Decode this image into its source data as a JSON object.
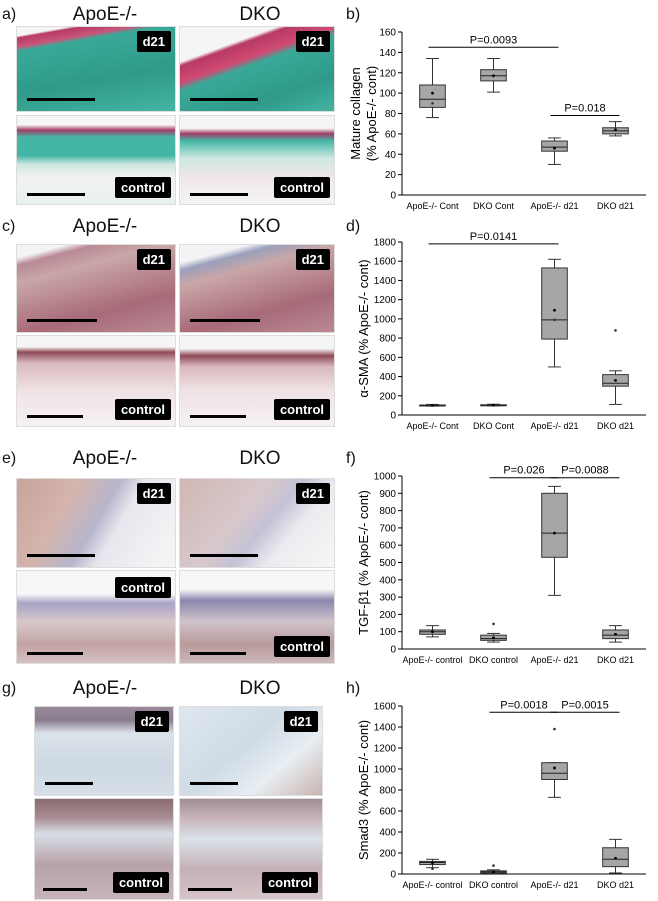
{
  "panels": {
    "a": {
      "label": "a)",
      "col_left": "ApoE-/-",
      "col_right": "DKO",
      "top_left_badge": "d21",
      "top_right_badge": "d21",
      "bottom_left_badge": "control",
      "bottom_right_badge": "control"
    },
    "b": {
      "label": "b)"
    },
    "c": {
      "label": "c)",
      "col_left": "ApoE-/-",
      "col_right": "DKO",
      "top_left_badge": "d21",
      "top_right_badge": "d21",
      "bottom_left_badge": "control",
      "bottom_right_badge": "control"
    },
    "d": {
      "label": "d)"
    },
    "e": {
      "label": "e)",
      "col_left": "ApoE-/-",
      "col_right": "DKO",
      "top_left_badge": "d21",
      "top_right_badge": "d21",
      "bottom_left_badge": "control",
      "bottom_right_badge": "control"
    },
    "f": {
      "label": "f)"
    },
    "g": {
      "label": "g)",
      "col_left": "ApoE-/-",
      "col_right": "DKO",
      "top_left_badge": "d21",
      "top_right_badge": "d21",
      "bottom_left_badge": "control",
      "bottom_right_badge": "control"
    },
    "h": {
      "label": "h)"
    }
  },
  "image_colors": {
    "a_top": [
      "#3aa898",
      "#b73a66"
    ],
    "a_bottom": [
      "#43b6a6",
      "#a23d66"
    ],
    "c": [
      "#c9a6a8",
      "#8e4a57"
    ],
    "e": [
      "#d8c8cc",
      "#a26a6e"
    ],
    "g": [
      "#dbe3ea",
      "#8a6c72"
    ]
  },
  "chart_data": [
    {
      "type": "box",
      "panel": "b",
      "ylabel": "Mature collagen\n(% ApoE-/- cont)",
      "ylim": [
        0,
        160
      ],
      "yticks": [
        0,
        20,
        40,
        60,
        80,
        100,
        120,
        140,
        160
      ],
      "categories": [
        "ApoE-/- Cont",
        "DKO Cont",
        "ApoE-/- d21",
        "DKO d21"
      ],
      "boxes": [
        {
          "min": 76,
          "q1": 86,
          "median": 94,
          "q3": 108,
          "max": 134,
          "mean": 100,
          "points": [
            90
          ]
        },
        {
          "min": 101,
          "q1": 112,
          "median": 117,
          "q3": 123,
          "max": 134,
          "mean": 117,
          "points": []
        },
        {
          "min": 30,
          "q1": 43,
          "median": 47,
          "q3": 53,
          "max": 56,
          "mean": 46,
          "points": []
        },
        {
          "min": 58,
          "q1": 60,
          "median": 63,
          "q3": 66,
          "max": 72,
          "mean": 64,
          "points": []
        }
      ],
      "annotations": [
        {
          "text": "P=0.0093",
          "from": 0,
          "to": 2,
          "y": 145
        },
        {
          "text": "P=0.018",
          "from": 2,
          "to": 3,
          "y": 78
        }
      ]
    },
    {
      "type": "box",
      "panel": "d",
      "ylabel": "α-SMA (% ApoE-/- cont)",
      "ylim": [
        0,
        1800
      ],
      "yticks": [
        0,
        200,
        400,
        600,
        800,
        1000,
        1200,
        1400,
        1600,
        1800
      ],
      "categories": [
        "ApoE-/- Cont",
        "DKO Cont",
        "ApoE-/- d21",
        "DKO d21"
      ],
      "boxes": [
        {
          "min": 92,
          "q1": 97,
          "median": 100,
          "q3": 104,
          "max": 110,
          "mean": 100,
          "points": []
        },
        {
          "min": 95,
          "q1": 99,
          "median": 103,
          "q3": 106,
          "max": 112,
          "mean": 103,
          "points": []
        },
        {
          "min": 500,
          "q1": 790,
          "median": 990,
          "q3": 1530,
          "max": 1620,
          "mean": 1090,
          "points": [
            990
          ]
        },
        {
          "min": 110,
          "q1": 300,
          "median": 330,
          "q3": 420,
          "max": 460,
          "mean": 360,
          "points": [
            880
          ]
        }
      ],
      "annotations": [
        {
          "text": "P=0.0141",
          "from": 0,
          "to": 2,
          "y": 1780
        }
      ]
    },
    {
      "type": "box",
      "panel": "f",
      "ylabel": "TGF-β1 (% ApoE-/- cont)",
      "ylim": [
        0,
        1000
      ],
      "yticks": [
        0,
        100,
        200,
        300,
        400,
        500,
        600,
        700,
        800,
        900,
        1000
      ],
      "categories": [
        "ApoE-/- control",
        "DKO control",
        "ApoE-/- d21",
        "DKO d21"
      ],
      "boxes": [
        {
          "min": 70,
          "q1": 85,
          "median": 100,
          "q3": 110,
          "max": 135,
          "mean": 100,
          "points": []
        },
        {
          "min": 40,
          "q1": 50,
          "median": 60,
          "q3": 80,
          "max": 90,
          "mean": 65,
          "points": [
            145
          ]
        },
        {
          "min": 310,
          "q1": 530,
          "median": 670,
          "q3": 900,
          "max": 940,
          "mean": 670,
          "points": []
        },
        {
          "min": 40,
          "q1": 60,
          "median": 80,
          "q3": 110,
          "max": 135,
          "mean": 85,
          "points": []
        }
      ],
      "annotations": [
        {
          "text": "P=0.026",
          "from": 1,
          "to": 2,
          "y": 990
        },
        {
          "text": "P=0.0088",
          "from": 2,
          "to": 3,
          "y": 990
        }
      ]
    },
    {
      "type": "box",
      "panel": "h",
      "ylabel": "Smad3 (% ApoE-/- cont)",
      "ylim": [
        0,
        1600
      ],
      "yticks": [
        0,
        200,
        400,
        600,
        800,
        1000,
        1200,
        1400,
        1600
      ],
      "categories": [
        "ApoE-/- control",
        "DKO control",
        "ApoE-/- d21",
        "DKO d21"
      ],
      "boxes": [
        {
          "min": 60,
          "q1": 90,
          "median": 110,
          "q3": 120,
          "max": 140,
          "mean": 105,
          "points": [
            50
          ]
        },
        {
          "min": 5,
          "q1": 10,
          "median": 20,
          "q3": 30,
          "max": 40,
          "mean": 20,
          "points": [
            80
          ]
        },
        {
          "min": 730,
          "q1": 900,
          "median": 960,
          "q3": 1060,
          "max": 1060,
          "mean": 1010,
          "points": [
            1380
          ]
        },
        {
          "min": 10,
          "q1": 70,
          "median": 140,
          "q3": 250,
          "max": 330,
          "mean": 150,
          "points": []
        }
      ],
      "annotations": [
        {
          "text": "P=0.0018",
          "from": 1,
          "to": 2,
          "y": 1540
        },
        {
          "text": "P=0.0015",
          "from": 2,
          "to": 3,
          "y": 1540
        }
      ]
    }
  ]
}
